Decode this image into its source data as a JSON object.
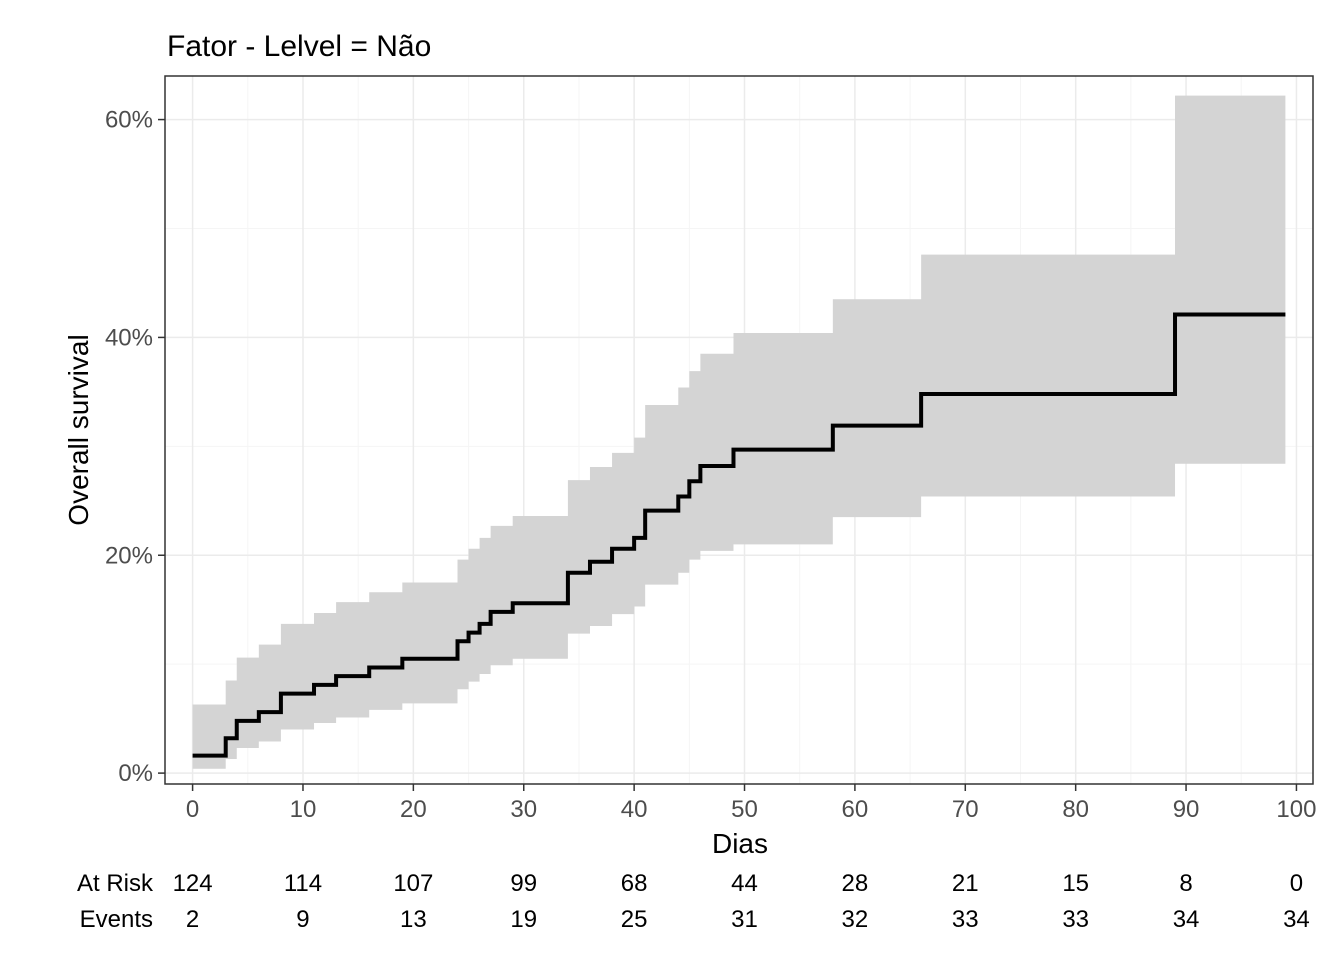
{
  "chart_data": {
    "type": "line",
    "step": true,
    "title": "Fator - Lelvel = Não",
    "xlabel": "Dias",
    "ylabel": "Overall survival",
    "xlim": [
      -2.5,
      101.5
    ],
    "ylim": [
      -1,
      64
    ],
    "x_ticks": [
      0,
      10,
      20,
      30,
      40,
      50,
      60,
      70,
      80,
      90,
      100
    ],
    "x_tick_labels": [
      "0",
      "10",
      "20",
      "30",
      "40",
      "50",
      "60",
      "70",
      "80",
      "90",
      "100"
    ],
    "y_ticks": [
      0,
      20,
      40,
      60
    ],
    "y_tick_labels": [
      "0%",
      "20%",
      "40%",
      "60%"
    ],
    "grid": true,
    "colors": {
      "line": "#000000",
      "ribbon": "#d4d4d4",
      "grid_major": "#ebebeb",
      "grid_minor": "#f5f5f5",
      "border": "#333333"
    },
    "series": [
      {
        "steps": [
          [
            0,
            1.6
          ],
          [
            3,
            3.2
          ],
          [
            4,
            4.8
          ],
          [
            6,
            5.6
          ],
          [
            8,
            7.3
          ],
          [
            11,
            8.1
          ],
          [
            13,
            8.9
          ],
          [
            16,
            9.7
          ],
          [
            19,
            10.5
          ],
          [
            24,
            12.1
          ],
          [
            25,
            12.9
          ],
          [
            26,
            13.7
          ],
          [
            27,
            14.8
          ],
          [
            29,
            15.6
          ],
          [
            34,
            18.4
          ],
          [
            36,
            19.4
          ],
          [
            38,
            20.6
          ],
          [
            40,
            21.6
          ],
          [
            41,
            24.1
          ],
          [
            44,
            25.4
          ],
          [
            45,
            26.8
          ],
          [
            46,
            28.2
          ],
          [
            49,
            29.7
          ],
          [
            58,
            31.9
          ],
          [
            66,
            34.8
          ],
          [
            89,
            42.1
          ],
          [
            99,
            42.1
          ]
        ],
        "lower": [
          [
            0,
            0.4
          ],
          [
            3,
            1.3
          ],
          [
            4,
            2.3
          ],
          [
            6,
            2.9
          ],
          [
            8,
            4.0
          ],
          [
            11,
            4.6
          ],
          [
            13,
            5.1
          ],
          [
            16,
            5.8
          ],
          [
            19,
            6.4
          ],
          [
            24,
            7.7
          ],
          [
            25,
            8.4
          ],
          [
            26,
            9.1
          ],
          [
            27,
            9.9
          ],
          [
            29,
            10.5
          ],
          [
            34,
            12.8
          ],
          [
            36,
            13.5
          ],
          [
            38,
            14.6
          ],
          [
            40,
            15.3
          ],
          [
            41,
            17.3
          ],
          [
            44,
            18.4
          ],
          [
            45,
            19.6
          ],
          [
            46,
            20.4
          ],
          [
            49,
            21.0
          ],
          [
            58,
            23.5
          ],
          [
            66,
            25.4
          ],
          [
            89,
            28.4
          ],
          [
            99,
            28.4
          ]
        ],
        "upper": [
          [
            0,
            6.3
          ],
          [
            3,
            8.5
          ],
          [
            4,
            10.6
          ],
          [
            6,
            11.8
          ],
          [
            8,
            13.7
          ],
          [
            11,
            14.7
          ],
          [
            13,
            15.7
          ],
          [
            16,
            16.6
          ],
          [
            19,
            17.5
          ],
          [
            24,
            19.6
          ],
          [
            25,
            20.6
          ],
          [
            26,
            21.6
          ],
          [
            27,
            22.7
          ],
          [
            29,
            23.6
          ],
          [
            34,
            26.9
          ],
          [
            36,
            28.1
          ],
          [
            38,
            29.4
          ],
          [
            40,
            30.8
          ],
          [
            41,
            33.8
          ],
          [
            44,
            35.4
          ],
          [
            45,
            36.9
          ],
          [
            46,
            38.5
          ],
          [
            49,
            40.4
          ],
          [
            58,
            43.5
          ],
          [
            66,
            47.6
          ],
          [
            89,
            62.2
          ],
          [
            99,
            62.2
          ]
        ]
      }
    ],
    "risk_table": {
      "rows": [
        {
          "label": "At Risk",
          "values": [
            "124",
            "114",
            "107",
            "99",
            "68",
            "44",
            "28",
            "21",
            "15",
            "8",
            "0"
          ]
        },
        {
          "label": "Events",
          "values": [
            "2",
            "9",
            "13",
            "19",
            "25",
            "31",
            "32",
            "33",
            "33",
            "34",
            "34"
          ]
        }
      ]
    }
  }
}
